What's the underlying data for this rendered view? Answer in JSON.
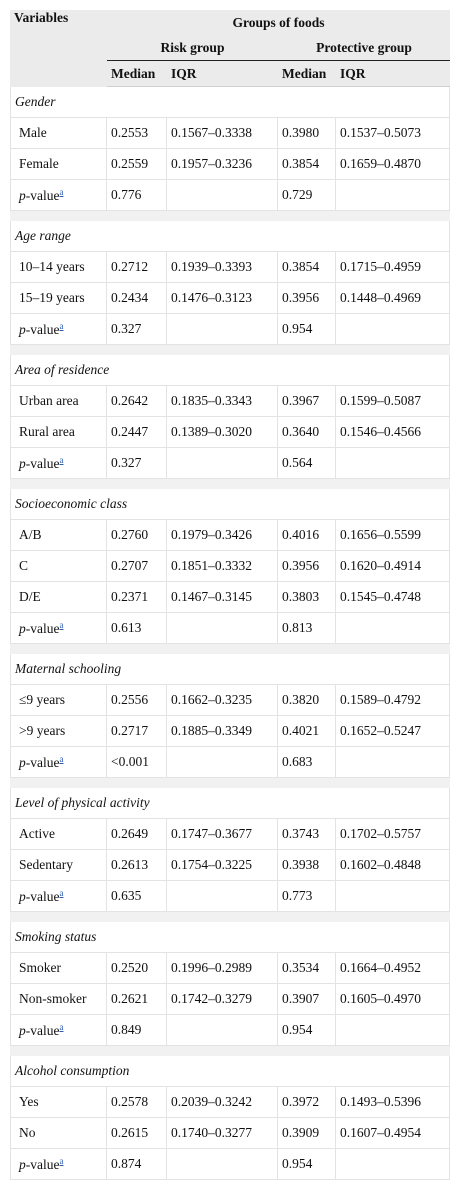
{
  "header": {
    "variables": "Variables",
    "groups": "Groups of foods",
    "risk_group": "Risk group",
    "protective_group": "Protective group",
    "columns": [
      "Median",
      "IQR",
      "Median",
      "IQR"
    ]
  },
  "sections": [
    {
      "title": "Gender",
      "rows": [
        [
          "Male",
          "0.2553",
          "0.1567–0.3338",
          "0.3980",
          "0.1537–0.5073"
        ],
        [
          "Female",
          "0.2559",
          "0.1957–0.3236",
          "0.3854",
          "0.1659–0.4870"
        ]
      ],
      "p": {
        "label": "p-value",
        "note": "a",
        "risk": "0.776",
        "protective": "0.729"
      }
    },
    {
      "title": "Age range",
      "rows": [
        [
          "10–14 years",
          "0.2712",
          "0.1939–0.3393",
          "0.3854",
          "0.1715–0.4959"
        ],
        [
          "15–19 years",
          "0.2434",
          "0.1476–0.3123",
          "0.3956",
          "0.1448–0.4969"
        ]
      ],
      "p": {
        "label": "p-value",
        "note": "a",
        "risk": "0.327",
        "protective": "0.954"
      }
    },
    {
      "title": "Area of residence",
      "rows": [
        [
          "Urban area",
          "0.2642",
          "0.1835–0.3343",
          "0.3967",
          "0.1599–0.5087"
        ],
        [
          "Rural area",
          "0.2447",
          "0.1389–0.3020",
          "0.3640",
          "0.1546–0.4566"
        ]
      ],
      "p": {
        "label": "p-value",
        "note": "a",
        "risk": "0.327",
        "protective": "0.564"
      }
    },
    {
      "title": "Socioeconomic class",
      "rows": [
        [
          "A/B",
          "0.2760",
          "0.1979–0.3426",
          "0.4016",
          "0.1656–0.5599"
        ],
        [
          "C",
          "0.2707",
          "0.1851–0.3332",
          "0.3956",
          "0.1620–0.4914"
        ],
        [
          "D/E",
          "0.2371",
          "0.1467–0.3145",
          "0.3803",
          "0.1545–0.4748"
        ]
      ],
      "p": {
        "label": "p-value",
        "note": "a",
        "risk": "0.613",
        "protective": "0.813"
      }
    },
    {
      "title": "Maternal schooling",
      "rows": [
        [
          "≤9 years",
          "0.2556",
          "0.1662–0.3235",
          "0.3820",
          "0.1589–0.4792"
        ],
        [
          ">9 years",
          "0.2717",
          "0.1885–0.3349",
          "0.4021",
          "0.1652–0.5247"
        ]
      ],
      "p": {
        "label": "p-value",
        "note": "a",
        "risk": "<0.001",
        "protective": "0.683"
      }
    },
    {
      "title": "Level of physical activity",
      "rows": [
        [
          "Active",
          "0.2649",
          "0.1747–0.3677",
          "0.3743",
          "0.1702–0.5757"
        ],
        [
          "Sedentary",
          "0.2613",
          "0.1754–0.3225",
          "0.3938",
          "0.1602–0.4848"
        ]
      ],
      "p": {
        "label": "p-value",
        "note": "a",
        "risk": "0.635",
        "protective": "0.773"
      }
    },
    {
      "title": "Smoking status",
      "rows": [
        [
          "Smoker",
          "0.2520",
          "0.1996–0.2989",
          "0.3534",
          "0.1664–0.4952"
        ],
        [
          "Non-smoker",
          "0.2621",
          "0.1742–0.3279",
          "0.3907",
          "0.1605–0.4970"
        ]
      ],
      "p": {
        "label": "p-value",
        "note": "a",
        "risk": "0.849",
        "protective": "0.954"
      }
    },
    {
      "title": "Alcohol consumption",
      "rows": [
        [
          "Yes",
          "0.2578",
          "0.2039–0.3242",
          "0.3972",
          "0.1493–0.5396"
        ],
        [
          "No",
          "0.2615",
          "0.1740–0.3277",
          "0.3909",
          "0.1607–0.4954"
        ]
      ],
      "p": {
        "label": "p-value",
        "note": "a",
        "risk": "0.874",
        "protective": "0.954"
      }
    }
  ]
}
